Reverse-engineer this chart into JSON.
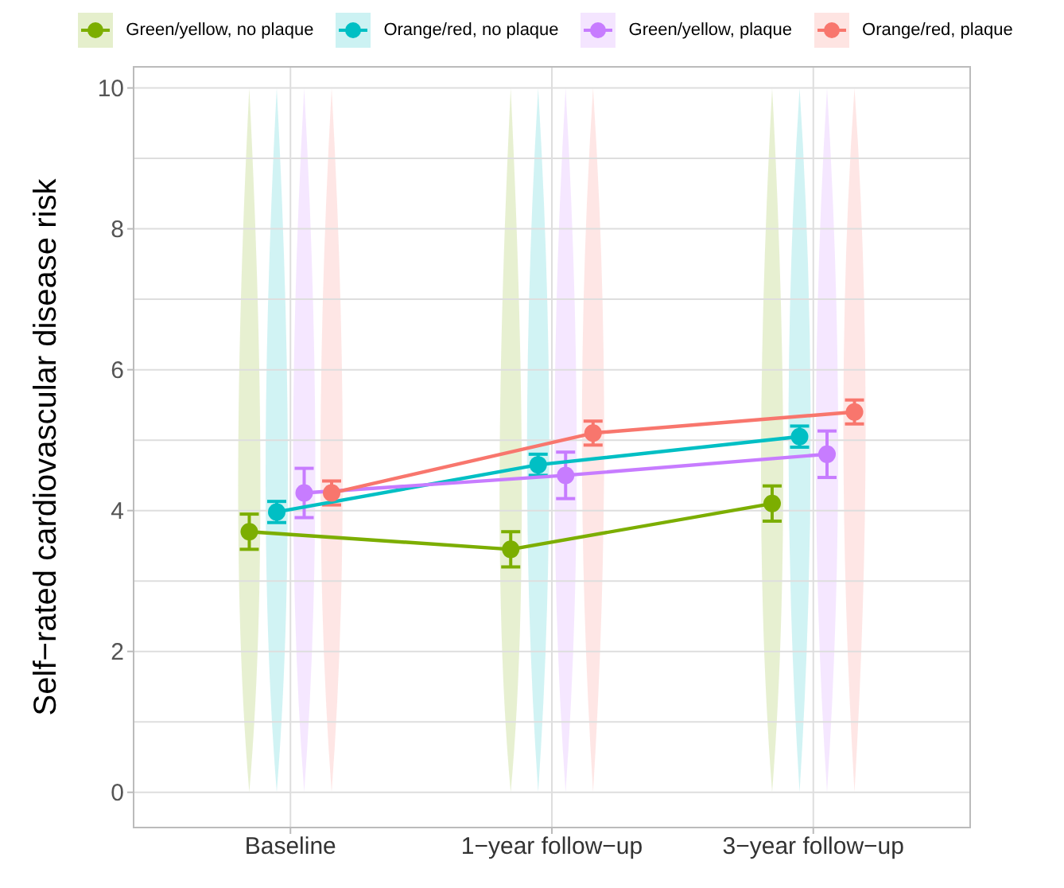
{
  "chart_data": {
    "type": "line",
    "ylabel": "Self−rated cardiovascular disease risk",
    "categories": [
      "Baseline",
      "1−year follow−up",
      "3−year follow−up"
    ],
    "series": [
      {
        "name": "Green/yellow, no plaque",
        "color": "#7cae00",
        "values": [
          3.7,
          3.45,
          4.1
        ],
        "errors": [
          0.25,
          0.25,
          0.25
        ]
      },
      {
        "name": "Orange/red, no plaque",
        "color": "#00bfc4",
        "values": [
          3.98,
          4.65,
          5.05
        ],
        "errors": [
          0.15,
          0.15,
          0.15
        ]
      },
      {
        "name": "Green/yellow, plaque",
        "color": "#c77cff",
        "values": [
          4.25,
          4.5,
          4.8
        ],
        "errors": [
          0.35,
          0.33,
          0.33
        ]
      },
      {
        "name": "Orange/red, plaque",
        "color": "#f8766d",
        "values": [
          4.25,
          5.1,
          5.4
        ],
        "errors": [
          0.17,
          0.17,
          0.17
        ]
      }
    ],
    "ylim": [
      -0.5,
      10.3
    ],
    "yticks": [
      0,
      2,
      4,
      6,
      8,
      10
    ],
    "grid": true,
    "legend": "top",
    "marker": "circle",
    "line_style": "solid"
  }
}
